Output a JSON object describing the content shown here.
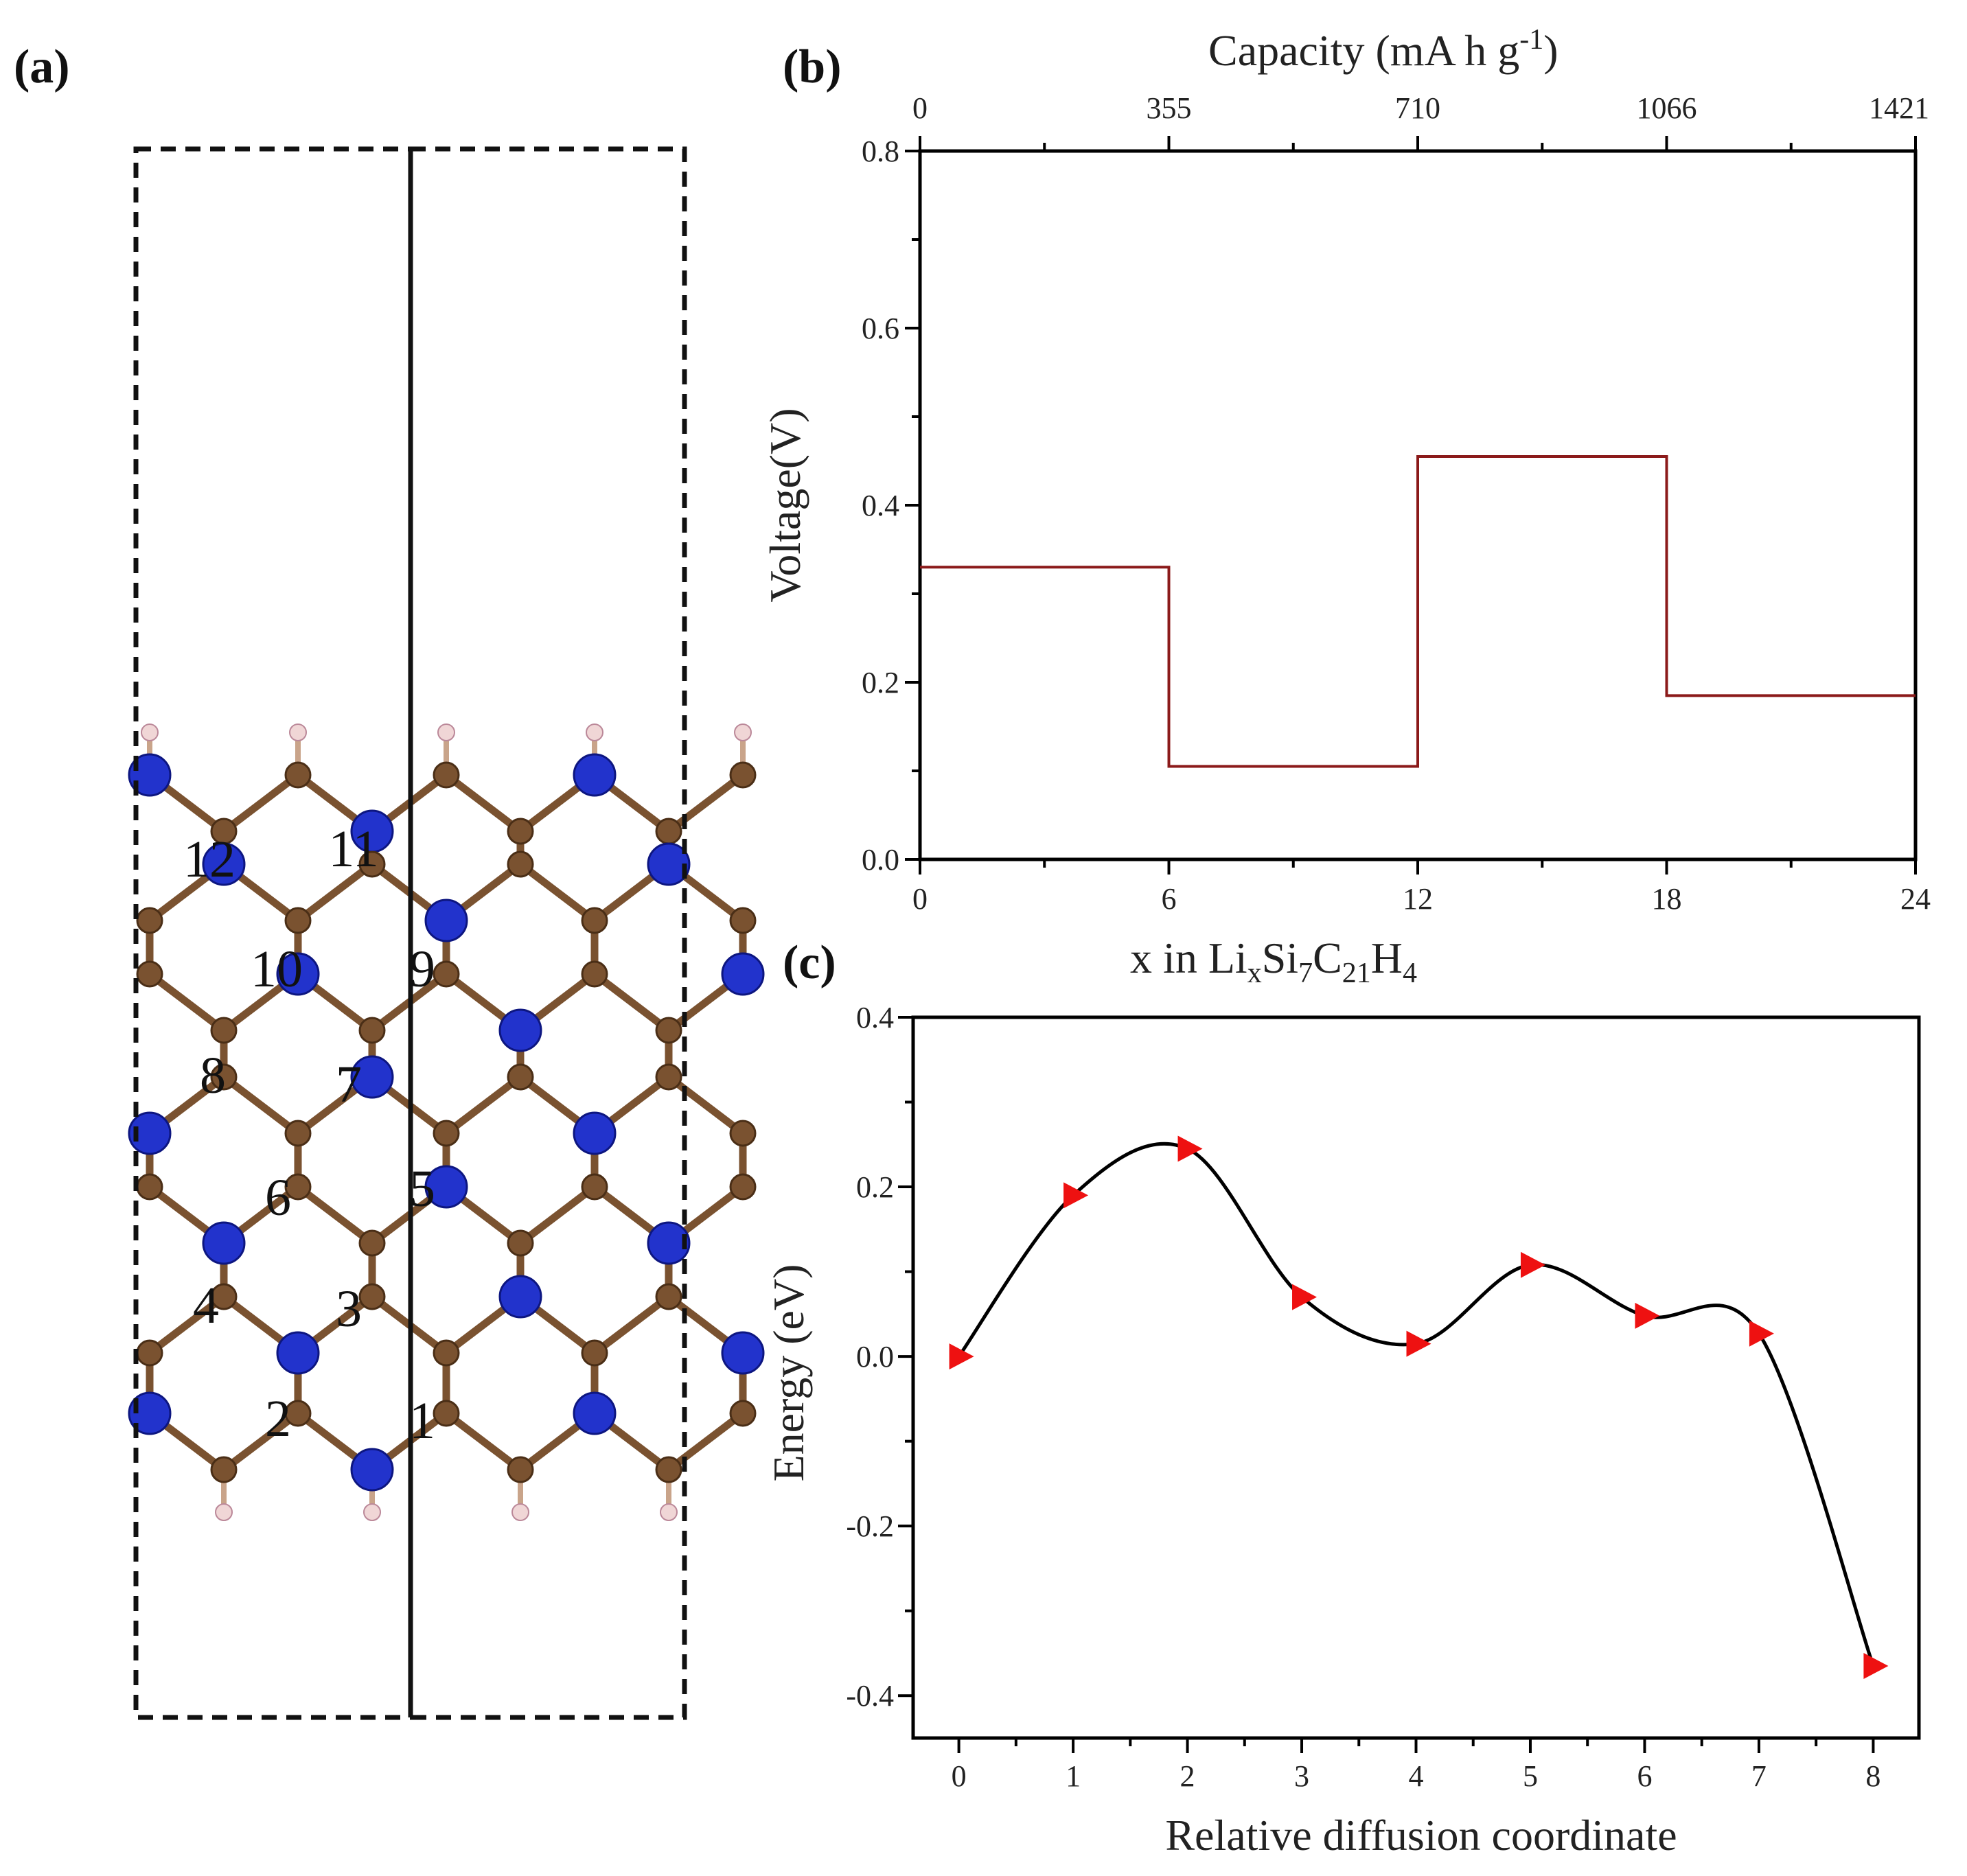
{
  "panels": {
    "a": {
      "label": "(a)"
    },
    "b": {
      "label": "(b)"
    },
    "c": {
      "label": "(c)"
    }
  },
  "structure": {
    "ring_labels": [
      "1",
      "2",
      "3",
      "4",
      "5",
      "6",
      "7",
      "8",
      "9",
      "10",
      "11",
      "12"
    ],
    "atom_colors": {
      "silicon": "#2233cc",
      "carbon": "#7a5230",
      "hydrogen": "#f0d6d6"
    }
  },
  "chart_data": [
    {
      "id": "b",
      "type": "line",
      "step": true,
      "title": "",
      "xlabel_main": "x in Li",
      "xlabel_sub1": "x",
      "xlabel_mid1": "Si",
      "xlabel_sub2": "7",
      "xlabel_mid2": "C",
      "xlabel_sub3": "21",
      "xlabel_mid3": "H",
      "xlabel_sub4": "4",
      "ylabel": "Voltage(V)",
      "top_xlabel_main": "Capacity (mA h g",
      "top_xlabel_sup": "-1",
      "top_xlabel_end": ")",
      "xlim": [
        0,
        24
      ],
      "ylim": [
        0,
        0.8
      ],
      "x_ticks": [
        "0",
        "6",
        "12",
        "18",
        "24"
      ],
      "y_ticks": [
        "0.0",
        "0.2",
        "0.4",
        "0.6",
        "0.8"
      ],
      "top_ticks": [
        "0",
        "355",
        "710",
        "1066",
        "1421"
      ],
      "color": "#8b1a1a",
      "segments": [
        {
          "x0": 0,
          "x1": 6,
          "y": 0.33
        },
        {
          "x0": 6,
          "x1": 12,
          "y": 0.105
        },
        {
          "x0": 12,
          "x1": 18,
          "y": 0.455
        },
        {
          "x0": 18,
          "x1": 24,
          "y": 0.185
        }
      ]
    },
    {
      "id": "c",
      "type": "line",
      "title": "",
      "xlabel": "Relative diffusion coordinate",
      "ylabel": "Energy (eV)",
      "xlim": [
        -0.4,
        8.4
      ],
      "ylim": [
        -0.45,
        0.4
      ],
      "x_ticks": [
        "0",
        "1",
        "2",
        "3",
        "4",
        "5",
        "6",
        "7",
        "8"
      ],
      "y_ticks": [
        "-0.4",
        "-0.2",
        "0.0",
        "0.2",
        "0.4"
      ],
      "line_color": "#000000",
      "marker_color": "#ee1111",
      "x": [
        0,
        1,
        2,
        3,
        4,
        5,
        6,
        7,
        8
      ],
      "y": [
        0.0,
        0.19,
        0.245,
        0.07,
        0.015,
        0.108,
        0.048,
        0.027,
        -0.365
      ]
    }
  ]
}
